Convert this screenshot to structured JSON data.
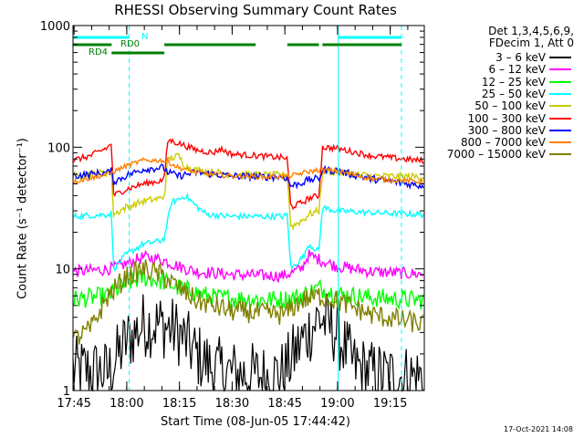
{
  "chart_data": {
    "type": "line",
    "title": "RHESSI Observing Summary Count Rates",
    "xlabel": "Start Time (08-Jun-05 17:44:42)",
    "ylabel": "Count Rate (s⁻¹ detector⁻¹)",
    "yscale": "log",
    "ylim": [
      1,
      1000
    ],
    "xlim_minutes": [
      0,
      100
    ],
    "x_ticks": [
      {
        "t": 0.3,
        "label": "17:45"
      },
      {
        "t": 15.3,
        "label": "18:00"
      },
      {
        "t": 30.3,
        "label": "18:15"
      },
      {
        "t": 45.3,
        "label": "18:30"
      },
      {
        "t": 60.3,
        "label": "18:45"
      },
      {
        "t": 75.3,
        "label": "19:00"
      },
      {
        "t": 90.3,
        "label": "19:15"
      }
    ],
    "y_ticks": [
      {
        "v": 1,
        "label": "1"
      },
      {
        "v": 10,
        "label": "10"
      },
      {
        "v": 100,
        "label": "100"
      },
      {
        "v": 1000,
        "label": "1000"
      }
    ],
    "legend_header": [
      "Det 1,3,4,5,6,9,",
      "FDecim 1, Att 0"
    ],
    "series": [
      {
        "name": "3 – 6 keV",
        "color": "#000000",
        "points": [
          [
            0,
            1.5
          ],
          [
            10,
            1.4
          ],
          [
            15,
            2.5
          ],
          [
            20,
            3.5
          ],
          [
            25,
            3.5
          ],
          [
            30,
            3.0
          ],
          [
            35,
            2.0
          ],
          [
            40,
            1.5
          ],
          [
            45,
            1.4
          ],
          [
            55,
            1.3
          ],
          [
            60,
            1.4
          ],
          [
            65,
            2.5
          ],
          [
            70,
            4.0
          ],
          [
            75,
            3.0
          ],
          [
            80,
            1.6
          ],
          [
            85,
            1.4
          ],
          [
            90,
            1.3
          ],
          [
            100,
            1.3
          ]
        ]
      },
      {
        "name": "6 – 12 keV",
        "color": "#ff00ff",
        "points": [
          [
            0,
            9.5
          ],
          [
            8,
            9.8
          ],
          [
            12,
            10.2
          ],
          [
            15,
            11
          ],
          [
            20,
            12.5
          ],
          [
            25,
            12
          ],
          [
            30,
            10.5
          ],
          [
            35,
            9.5
          ],
          [
            45,
            9.0
          ],
          [
            55,
            8.8
          ],
          [
            60,
            8.8
          ],
          [
            65,
            10
          ],
          [
            67,
            13
          ],
          [
            70,
            12
          ],
          [
            75,
            10.5
          ],
          [
            85,
            9.5
          ],
          [
            100,
            9.0
          ]
        ]
      },
      {
        "name": "12 – 25 keV",
        "color": "#00ff00",
        "points": [
          [
            0,
            5.6
          ],
          [
            10,
            6.0
          ],
          [
            15,
            7.5
          ],
          [
            20,
            8.5
          ],
          [
            25,
            8.0
          ],
          [
            30,
            7.0
          ],
          [
            40,
            5.8
          ],
          [
            55,
            5.6
          ],
          [
            60,
            5.6
          ],
          [
            65,
            6.0
          ],
          [
            70,
            7.0
          ],
          [
            75,
            6.2
          ],
          [
            85,
            5.8
          ],
          [
            100,
            5.5
          ]
        ]
      },
      {
        "name": "25 – 50 keV",
        "color": "#00ffff",
        "points": [
          [
            0,
            27
          ],
          [
            10,
            28
          ],
          [
            11,
            29
          ],
          [
            11.5,
            10
          ],
          [
            15,
            13
          ],
          [
            20,
            16
          ],
          [
            25,
            17
          ],
          [
            26,
            18
          ],
          [
            28,
            35
          ],
          [
            32,
            40
          ],
          [
            35,
            33
          ],
          [
            38,
            28
          ],
          [
            45,
            27
          ],
          [
            55,
            27
          ],
          [
            60,
            27
          ],
          [
            61,
            28
          ],
          [
            62,
            10
          ],
          [
            66,
            13
          ],
          [
            67,
            16
          ],
          [
            70,
            14
          ],
          [
            71,
            32
          ],
          [
            75,
            30
          ],
          [
            85,
            29
          ],
          [
            100,
            28
          ]
        ]
      },
      {
        "name": "50 – 100 keV",
        "color": "#cccc00",
        "points": [
          [
            0,
            58
          ],
          [
            10,
            62
          ],
          [
            11,
            64
          ],
          [
            11.5,
            28
          ],
          [
            15,
            32
          ],
          [
            20,
            36
          ],
          [
            25,
            38
          ],
          [
            26,
            40
          ],
          [
            27,
            80
          ],
          [
            30,
            85
          ],
          [
            32,
            70
          ],
          [
            35,
            65
          ],
          [
            45,
            60
          ],
          [
            55,
            59
          ],
          [
            60,
            59
          ],
          [
            61,
            60
          ],
          [
            62,
            22
          ],
          [
            66,
            26
          ],
          [
            67,
            28
          ],
          [
            70,
            30
          ],
          [
            71,
            64
          ],
          [
            75,
            62
          ],
          [
            85,
            58
          ],
          [
            100,
            57
          ]
        ]
      },
      {
        "name": "100 – 300 keV",
        "color": "#ff0000",
        "points": [
          [
            0,
            78
          ],
          [
            5,
            85
          ],
          [
            10,
            100
          ],
          [
            11,
            108
          ],
          [
            11.5,
            40
          ],
          [
            15,
            45
          ],
          [
            20,
            50
          ],
          [
            25,
            53
          ],
          [
            26,
            55
          ],
          [
            27,
            115
          ],
          [
            30,
            108
          ],
          [
            35,
            95
          ],
          [
            40,
            90
          ],
          [
            42,
            97
          ],
          [
            45,
            88
          ],
          [
            55,
            84
          ],
          [
            60,
            82
          ],
          [
            61,
            80
          ],
          [
            62,
            32
          ],
          [
            66,
            36
          ],
          [
            67,
            38
          ],
          [
            70,
            40
          ],
          [
            71,
            100
          ],
          [
            75,
            98
          ],
          [
            85,
            85
          ],
          [
            100,
            77
          ]
        ]
      },
      {
        "name": "300 – 800 keV",
        "color": "#0000ff",
        "points": [
          [
            0,
            58
          ],
          [
            10,
            62
          ],
          [
            11,
            64
          ],
          [
            11.5,
            52
          ],
          [
            15,
            58
          ],
          [
            20,
            66
          ],
          [
            25,
            68
          ],
          [
            26,
            67
          ],
          [
            27,
            62
          ],
          [
            30,
            58
          ],
          [
            35,
            62
          ],
          [
            45,
            58
          ],
          [
            55,
            57
          ],
          [
            60,
            57
          ],
          [
            61,
            55
          ],
          [
            62,
            48
          ],
          [
            66,
            52
          ],
          [
            67,
            54
          ],
          [
            70,
            55
          ],
          [
            71,
            65
          ],
          [
            75,
            64
          ],
          [
            85,
            55
          ],
          [
            100,
            48
          ]
        ]
      },
      {
        "name": "800 – 7000 keV",
        "color": "#ff8000",
        "points": [
          [
            0,
            52
          ],
          [
            10,
            60
          ],
          [
            15,
            70
          ],
          [
            20,
            78
          ],
          [
            25,
            78
          ],
          [
            27,
            76
          ],
          [
            30,
            68
          ],
          [
            35,
            62
          ],
          [
            45,
            58
          ],
          [
            55,
            57
          ],
          [
            61,
            58
          ],
          [
            62,
            58
          ],
          [
            66,
            62
          ],
          [
            70,
            65
          ],
          [
            75,
            64
          ],
          [
            85,
            55
          ],
          [
            100,
            52
          ]
        ]
      },
      {
        "name": "7000 – 15000 keV",
        "color": "#808000",
        "points": [
          [
            0,
            2.6
          ],
          [
            5,
            3.2
          ],
          [
            10,
            6.0
          ],
          [
            15,
            8.5
          ],
          [
            20,
            10.0
          ],
          [
            25,
            9.0
          ],
          [
            30,
            7.0
          ],
          [
            35,
            5.5
          ],
          [
            45,
            4.5
          ],
          [
            55,
            4.3
          ],
          [
            60,
            4.2
          ],
          [
            65,
            5.5
          ],
          [
            70,
            6.0
          ],
          [
            75,
            5.5
          ],
          [
            85,
            4.2
          ],
          [
            100,
            3.5
          ]
        ]
      }
    ],
    "cyan_vertical_lines": [
      {
        "t": 0.0,
        "style": "solid"
      },
      {
        "t": 16.0,
        "style": "dashed"
      },
      {
        "t": 75.5,
        "style": "solid"
      },
      {
        "t": 93.5,
        "style": "dashed"
      }
    ],
    "flag_bars": [
      {
        "label": "N",
        "color": "#00ffff",
        "y_level": 1,
        "segments": [
          [
            0,
            16
          ],
          [
            75.5,
            93.5
          ]
        ]
      },
      {
        "label": "RD0",
        "color": "#008000",
        "y_level": 2,
        "segments": [
          [
            0,
            11
          ],
          [
            26,
            52
          ],
          [
            61,
            70
          ],
          [
            71,
            93.5
          ]
        ]
      },
      {
        "label": "RD4",
        "color": "#008000",
        "y_level": 3,
        "segments": [
          [
            11,
            26
          ]
        ]
      }
    ]
  },
  "footer_date": "17-Oct-2021 14:08"
}
